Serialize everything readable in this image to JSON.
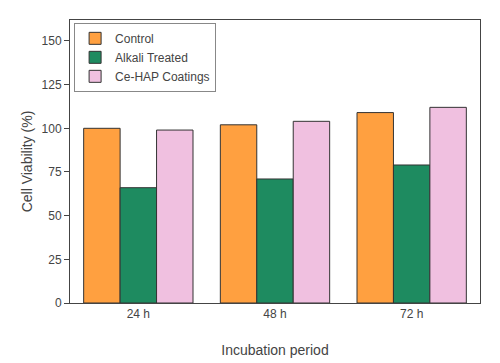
{
  "chart_data": {
    "type": "bar",
    "categories": [
      "24 h",
      "48 h",
      "72 h"
    ],
    "series": [
      {
        "name": "Control",
        "color": "#FFA040",
        "values": [
          100,
          102,
          109
        ]
      },
      {
        "name": "Alkali Treated",
        "color": "#1E8B60",
        "values": [
          66,
          71,
          79
        ]
      },
      {
        "name": "Ce-HAP Coatings",
        "color": "#F0C0E0",
        "values": [
          99,
          104,
          112
        ]
      }
    ],
    "xlabel": "Incubation period",
    "ylabel": "Cell Viability (%)",
    "ylim": [
      0,
      162
    ],
    "yticks": [
      0,
      25,
      50,
      75,
      100,
      125,
      150
    ],
    "grid": false,
    "legend": "upper left"
  }
}
